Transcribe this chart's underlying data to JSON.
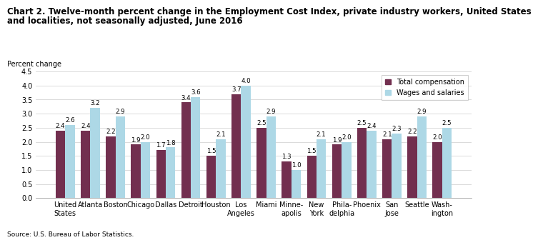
{
  "title_line1": "Chart 2. Twelve-month percent change in the Employment Cost Index, private industry workers, United States",
  "title_line2": "and localities, not seasonally adjusted, June 2016",
  "ylabel": "Percent change",
  "source": "Source: U.S. Bureau of Labor Statistics.",
  "categories": [
    "United\nStates",
    "Atlanta",
    "Boston",
    "Chicago",
    "Dallas",
    "Detroit",
    "Houston",
    "Los\nAngeles",
    "Miami",
    "Minne-\napolis",
    "New\nYork",
    "Phila-\ndelphia",
    "Phoenix",
    "San\nJose",
    "Seattle",
    "Wash-\nington"
  ],
  "total_compensation": [
    2.4,
    2.4,
    2.2,
    1.9,
    1.7,
    3.4,
    1.5,
    3.7,
    2.5,
    1.3,
    1.5,
    1.9,
    2.5,
    2.1,
    2.2,
    2.0
  ],
  "wages_and_salaries": [
    2.6,
    3.2,
    2.9,
    2.0,
    1.8,
    3.6,
    2.1,
    4.0,
    2.9,
    1.0,
    2.1,
    2.0,
    2.4,
    2.3,
    2.9,
    2.5
  ],
  "color_total": "#722F4F",
  "color_wages": "#ADD8E6",
  "ylim": [
    0,
    4.5
  ],
  "yticks": [
    0.0,
    0.5,
    1.0,
    1.5,
    2.0,
    2.5,
    3.0,
    3.5,
    4.0,
    4.5
  ],
  "legend_labels": [
    "Total compensation",
    "Wages and salaries"
  ],
  "bar_width": 0.38,
  "title_fontsize": 8.5,
  "label_fontsize": 7.0,
  "tick_fontsize": 7.0,
  "value_fontsize": 6.2,
  "source_fontsize": 6.5
}
